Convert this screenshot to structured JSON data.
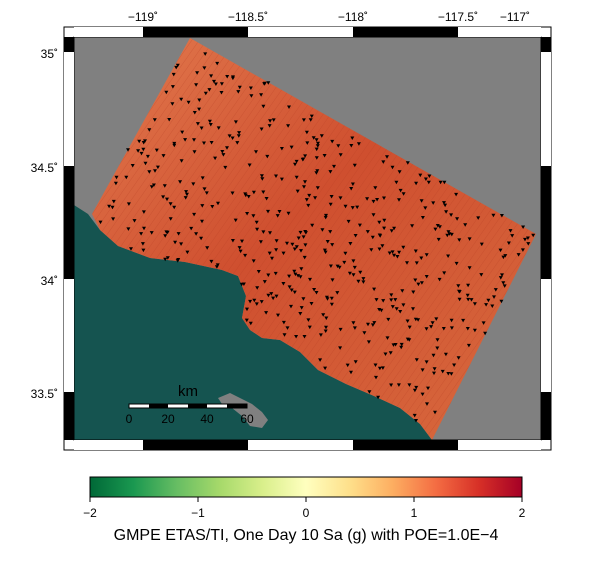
{
  "map": {
    "lon_ticks": [
      "−119˚",
      "−118.5˚",
      "−118˚",
      "−117.5˚",
      "−117˚"
    ],
    "lat_ticks": [
      "35˚",
      "34.5˚",
      "34˚",
      "33.5˚"
    ],
    "lon_range": [
      -119.75,
      -116.85
    ],
    "lat_range": [
      33.25,
      35.1
    ],
    "scale_bar": {
      "title": "km",
      "labels": [
        "0",
        "20",
        "40",
        "60"
      ]
    },
    "colors": {
      "ocean": "#155450",
      "no_data": "#808080",
      "land_high": "#c8432a",
      "land_low": "#e07a48",
      "station": "#000000"
    }
  },
  "colorbar": {
    "ticks": [
      "−2",
      "−1",
      "0",
      "1",
      "2"
    ],
    "range": [
      -2,
      2
    ],
    "palette": [
      "#006837",
      "#1a9850",
      "#66bd63",
      "#a6d96a",
      "#d9ef8b",
      "#ffffbf",
      "#fee08b",
      "#fdae61",
      "#f46d43",
      "#d73027",
      "#a50026"
    ],
    "title": "GMPE ETAS/TI, One Day 10 Sa (g) with POE=1.0E−4"
  }
}
